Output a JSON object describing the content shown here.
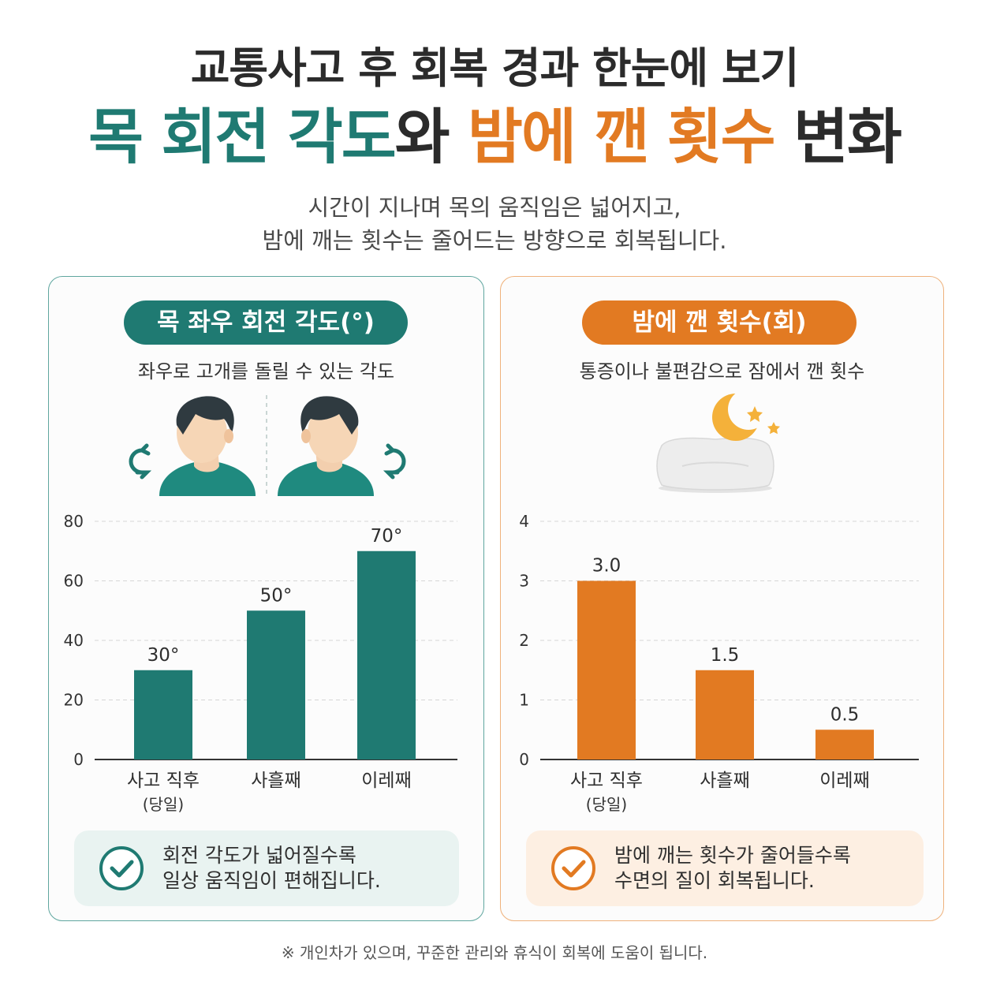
{
  "header": {
    "title_line1": "교통사고 후 회복 경과 한눈에 보기",
    "title_line2_part1": "목 회전 각도",
    "title_line2_part2": "와 ",
    "title_line2_part3": "밤에 깬 횟수",
    "title_line2_part4": " 변화",
    "subtitle_line1": "시간이 지나며 목의 움직임은 넓어지고,",
    "subtitle_line2": "밤에 깨는 횟수는 줄어드는 방향으로 회복됩니다."
  },
  "left_panel": {
    "pill_label": "목 좌우 회전 각도(°)",
    "description": "좌우로 고개를 돌릴 수 있는 각도",
    "note_line1": "회전 각도가 넓어질수록",
    "note_line2": "일상 움직임이 편해집니다."
  },
  "right_panel": {
    "pill_label": "밤에 깬 횟수(회)",
    "description": "통증이나 불편감으로 잠에서 깬 횟수",
    "note_line1": "밤에 깨는 횟수가 줄어들수록",
    "note_line2": "수면의 질이 회복됩니다."
  },
  "footer": "※ 개인차가 있으며, 꾸준한 관리와 휴식이 회복에 도움이 됩니다.",
  "colors": {
    "teal": "#1f7a72",
    "orange": "#e27a22"
  },
  "chart_data": [
    {
      "type": "bar",
      "title": "목 좌우 회전 각도(°)",
      "categories": [
        "사고 직후",
        "사흘째",
        "이레째"
      ],
      "category_sublabels": [
        "(당일)",
        "",
        ""
      ],
      "values": [
        30,
        50,
        70
      ],
      "data_labels": [
        "30°",
        "50°",
        "70°"
      ],
      "ylim": [
        0,
        80
      ],
      "yticks": [
        0,
        20,
        40,
        60,
        80
      ],
      "grid": true,
      "color": "#1f7a72"
    },
    {
      "type": "bar",
      "title": "밤에 깬 횟수(회)",
      "categories": [
        "사고 직후",
        "사흘째",
        "이레째"
      ],
      "category_sublabels": [
        "(당일)",
        "",
        ""
      ],
      "values": [
        3.0,
        1.5,
        0.5
      ],
      "data_labels": [
        "3.0",
        "1.5",
        "0.5"
      ],
      "ylim": [
        0,
        4
      ],
      "yticks": [
        0,
        1,
        2,
        3,
        4
      ],
      "grid": true,
      "color": "#e27a22"
    }
  ]
}
